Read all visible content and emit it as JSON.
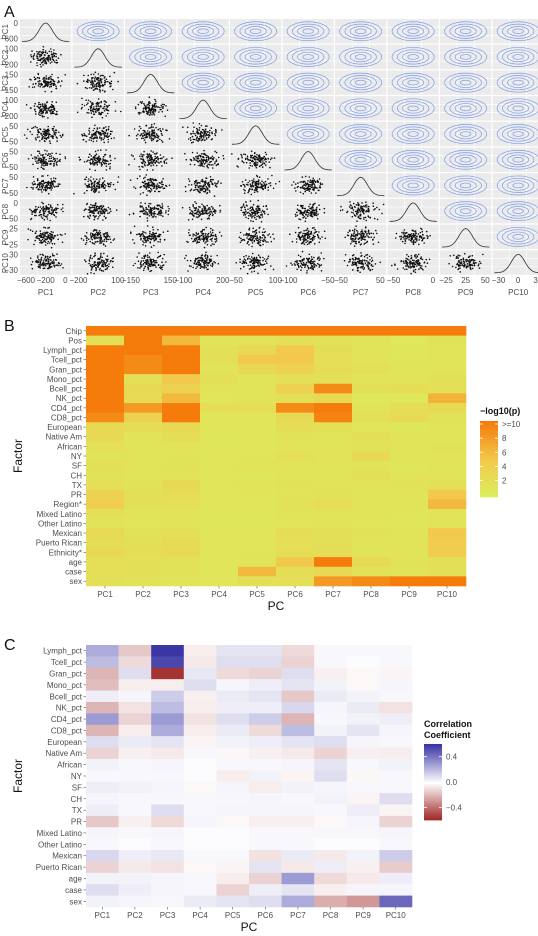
{
  "panels": {
    "a": {
      "letter": "A"
    },
    "b": {
      "letter": "B"
    },
    "c": {
      "letter": "C"
    }
  },
  "chart_data": [
    {
      "type": "scatter",
      "description_kind": "pairs-matrix",
      "variables": [
        "PC1",
        "PC2",
        "PC3",
        "PC4",
        "PC5",
        "PC6",
        "PC7",
        "PC8",
        "PC9",
        "PC10"
      ],
      "lower": "scatter",
      "diagonal": "density",
      "upper": "density-contour",
      "x_ticks": [
        [
          "−600",
          "−200",
          "0"
        ],
        [
          "−200",
          "100"
        ],
        [
          "−150",
          "150"
        ],
        [
          "−100",
          "200"
        ],
        [
          "−50",
          "100"
        ],
        [
          "−100",
          "−50"
        ],
        [
          "−50",
          "50"
        ],
        [
          "−50",
          "0"
        ],
        [
          "−25",
          "25",
          "50"
        ],
        [
          "−30",
          "0",
          "30"
        ]
      ],
      "y_ticks": [
        [
          "0",
          "−600"
        ],
        [
          "100",
          "−200"
        ],
        [
          "150",
          "−150"
        ],
        [
          "100",
          "−200"
        ],
        [
          "50",
          "−50"
        ],
        [
          "50",
          "−50"
        ],
        [
          "50",
          "−50"
        ],
        [
          "0",
          "−50"
        ],
        [
          "25",
          "−25"
        ],
        [
          "30",
          "−30"
        ]
      ],
      "colors": {
        "points": "#111111",
        "contours": "#7f9ce8",
        "density": "#333333",
        "panel_bg": "#ebebeb"
      }
    },
    {
      "type": "heatmap",
      "rows": [
        "Chip",
        "Pos",
        "Lymph_pct",
        "Tcell_pct",
        "Gran_pct",
        "Mono_pct",
        "Bcell_pct",
        "NK_pct",
        "CD4_pct",
        "CD8_pct",
        "European",
        "Native Am",
        "African",
        "NY",
        "SF",
        "CH",
        "TX",
        "PR",
        "Region*",
        "Mixed Latino",
        "Other Latino",
        "Mexican",
        "Puerto Rican",
        "Ethnicity*",
        "age",
        "case",
        "sex"
      ],
      "columns": [
        "PC1",
        "PC2",
        "PC3",
        "PC4",
        "PC5",
        "PC6",
        "PC7",
        "PC8",
        "PC9",
        "PC10"
      ],
      "xlabel": "PC",
      "ylabel": "Factor",
      "legend_title": "−log10(p)",
      "legend_labels": [
        ">=10",
        "8",
        "6",
        "4",
        "2"
      ],
      "legend_values": [
        10,
        8,
        6,
        4,
        2
      ],
      "range": [
        0,
        10
      ],
      "colors": {
        "low": "#d9f05f",
        "mid": "#f2c94c",
        "high": "#f57b0a"
      },
      "values": [
        [
          10,
          10,
          10,
          10,
          10,
          10,
          10,
          10,
          10,
          10
        ],
        [
          2,
          10,
          6,
          1.5,
          1.5,
          2,
          1.8,
          1.6,
          1.2,
          1.8
        ],
        [
          10,
          10,
          10,
          2,
          3,
          5,
          2.5,
          1.5,
          1.3,
          1.5
        ],
        [
          10,
          9,
          10,
          2,
          5,
          5,
          2.2,
          1.6,
          1.3,
          1.5
        ],
        [
          10,
          9,
          10,
          1.6,
          3,
          4,
          2.5,
          2,
          1.6,
          1.6
        ],
        [
          10,
          2,
          5,
          2,
          1.5,
          2,
          2,
          1.5,
          1.6,
          2
        ],
        [
          10,
          3,
          4,
          1.5,
          1.5,
          4,
          9,
          2,
          2.5,
          2
        ],
        [
          10,
          2.8,
          6,
          1.4,
          1.6,
          2,
          3,
          1.2,
          1.2,
          6.5
        ],
        [
          10,
          8,
          10,
          2.5,
          2.5,
          9,
          10,
          1.5,
          2.5,
          3
        ],
        [
          9,
          4,
          10,
          1.3,
          1.4,
          3,
          9.5,
          2,
          2.8,
          1.8
        ],
        [
          3,
          2.5,
          3,
          1.4,
          1.3,
          2.5,
          2,
          1.4,
          1.2,
          1.6
        ],
        [
          3,
          1.5,
          2.5,
          1.3,
          1.3,
          1.8,
          1.7,
          2,
          1.6,
          1.6
        ],
        [
          2,
          1.5,
          1.7,
          1.3,
          1.4,
          1.6,
          1.5,
          1.8,
          1.6,
          1.8
        ],
        [
          1.6,
          1.6,
          1.5,
          1.3,
          1.3,
          2,
          1.7,
          3,
          1.6,
          1.7
        ],
        [
          2,
          1.6,
          1.8,
          1.4,
          1.6,
          1.7,
          1.5,
          1.6,
          1.3,
          1.5
        ],
        [
          1.8,
          1.5,
          1.6,
          1.3,
          1.3,
          1.5,
          1.7,
          2,
          1.5,
          1.5
        ],
        [
          2.2,
          1.8,
          3,
          1.4,
          1.6,
          1.8,
          1.7,
          1.5,
          1.8,
          2
        ],
        [
          4,
          2,
          2.5,
          1.4,
          1.4,
          1.6,
          1.8,
          1.7,
          1.5,
          5
        ],
        [
          4.5,
          2,
          2.2,
          1.4,
          1.4,
          1.9,
          2.5,
          1.6,
          1.6,
          6
        ],
        [
          2,
          1.6,
          1.5,
          1.3,
          1.3,
          1.5,
          1.6,
          1.5,
          1.4,
          1.7
        ],
        [
          1.5,
          1.4,
          1.5,
          1.3,
          1.3,
          1.4,
          1.5,
          1.4,
          1.3,
          1.6
        ],
        [
          3,
          1.8,
          2.2,
          1.3,
          1.4,
          2.4,
          2,
          1.8,
          1.6,
          5
        ],
        [
          2.5,
          2,
          2.8,
          1.4,
          1.4,
          2.2,
          2,
          1.6,
          1.5,
          4.5
        ],
        [
          3,
          2.5,
          2.8,
          1.4,
          1.4,
          2.5,
          2.4,
          1.6,
          1.5,
          4.5
        ],
        [
          2,
          2,
          1.8,
          1.4,
          1.6,
          5,
          10,
          3,
          1.8,
          2
        ],
        [
          2.2,
          2,
          1.8,
          1.4,
          6,
          2.5,
          3,
          1.8,
          1.6,
          2
        ],
        [
          2,
          1.8,
          1.5,
          1.4,
          2,
          2.2,
          8,
          9,
          10,
          10
        ]
      ]
    },
    {
      "type": "heatmap",
      "rows": [
        "Lymph_pct",
        "Tcell_pct",
        "Gran_pct",
        "Mono_pct",
        "Bcell_pct",
        "NK_pct",
        "CD4_pct",
        "CD8_pct",
        "European",
        "Native Am",
        "African",
        "NY",
        "SF",
        "CH",
        "TX",
        "PR",
        "Mixed Latino",
        "Other Latino",
        "Mexican",
        "Puerto Rican",
        "age",
        "case",
        "sex"
      ],
      "columns": [
        "PC1",
        "PC2",
        "PC3",
        "PC4",
        "PC5",
        "PC6",
        "PC7",
        "PC8",
        "PC9",
        "PC10"
      ],
      "xlabel": "PC",
      "ylabel": "Factor",
      "legend_title_lines": [
        "Correlation",
        "Coefficient"
      ],
      "legend_labels": [
        "0.4",
        "0.0",
        "−0.4"
      ],
      "legend_values": [
        0.4,
        0,
        -0.4
      ],
      "range": [
        -0.6,
        0.6
      ],
      "colors": {
        "negative": "#9c2222",
        "zero": "#ffffff",
        "positive": "#3a36a6"
      },
      "values": [
        [
          0.25,
          -0.15,
          0.6,
          -0.05,
          0.08,
          0.08,
          -0.1,
          0.02,
          0.02,
          0.02
        ],
        [
          0.2,
          -0.1,
          0.55,
          -0.06,
          0.1,
          0.1,
          -0.12,
          0.02,
          0.01,
          0.02
        ],
        [
          -0.2,
          0.1,
          -0.55,
          0.07,
          -0.1,
          -0.12,
          0.1,
          -0.04,
          -0.02,
          -0.03
        ],
        [
          -0.18,
          -0.05,
          -0.05,
          0.1,
          0.03,
          0.05,
          0.08,
          0.04,
          -0.02,
          0.03
        ],
        [
          0.05,
          0.03,
          0.15,
          -0.04,
          0.06,
          0.08,
          -0.15,
          0.06,
          0.04,
          0.02
        ],
        [
          -0.2,
          -0.08,
          0.2,
          -0.05,
          0.05,
          0.05,
          0.12,
          0.03,
          0.06,
          -0.08
        ],
        [
          0.3,
          -0.12,
          0.3,
          -0.08,
          0.1,
          0.15,
          -0.2,
          0.02,
          0.04,
          0.05
        ],
        [
          -0.2,
          -0.05,
          0.25,
          -0.05,
          0.06,
          -0.1,
          0.2,
          0.04,
          0.08,
          0.03
        ],
        [
          0.1,
          0.06,
          0.08,
          -0.03,
          0.04,
          0.05,
          0.08,
          0.1,
          0.03,
          0.02
        ],
        [
          -0.12,
          -0.04,
          -0.06,
          0.02,
          -0.02,
          -0.04,
          -0.06,
          -0.12,
          -0.04,
          -0.05
        ],
        [
          0.04,
          0.02,
          0.03,
          0.01,
          0.02,
          0.02,
          0.03,
          0.08,
          0.02,
          0.04
        ],
        [
          0.02,
          0.02,
          0.02,
          0.01,
          -0.05,
          0.04,
          -0.03,
          0.1,
          -0.02,
          0.02
        ],
        [
          0.05,
          0.04,
          0.03,
          -0.02,
          0.03,
          -0.05,
          0.04,
          0.03,
          0.02,
          0.02
        ],
        [
          0.03,
          0.02,
          0.02,
          0.02,
          0.02,
          0.03,
          0.02,
          0.04,
          -0.03,
          0.1
        ],
        [
          0.05,
          0.02,
          0.1,
          0.02,
          0.03,
          0.03,
          0.03,
          0.02,
          0.05,
          -0.03
        ],
        [
          -0.15,
          -0.04,
          -0.1,
          0.03,
          -0.02,
          -0.04,
          -0.04,
          -0.02,
          0.03,
          -0.12
        ],
        [
          0.03,
          0.02,
          0.03,
          0.01,
          0.01,
          0.02,
          0.02,
          0.02,
          0.02,
          0.03
        ],
        [
          0.02,
          0.01,
          0.02,
          0.01,
          0.01,
          0.02,
          0.02,
          0.01,
          0.01,
          0.02
        ],
        [
          0.12,
          0.05,
          0.07,
          0.02,
          0.02,
          -0.08,
          0.06,
          -0.06,
          0.04,
          0.15
        ],
        [
          -0.12,
          -0.06,
          -0.08,
          -0.02,
          -0.03,
          0.08,
          -0.06,
          0.05,
          -0.04,
          -0.14
        ],
        [
          0.04,
          0.04,
          0.03,
          0.02,
          -0.05,
          -0.12,
          0.3,
          -0.1,
          -0.06,
          0.05
        ],
        [
          0.1,
          0.05,
          0.03,
          0.02,
          -0.12,
          0.05,
          0.08,
          -0.04,
          0.03,
          0.03
        ],
        [
          0.04,
          0.03,
          0.02,
          0.06,
          0.08,
          0.1,
          0.25,
          -0.22,
          -0.28,
          0.45
        ]
      ]
    }
  ]
}
